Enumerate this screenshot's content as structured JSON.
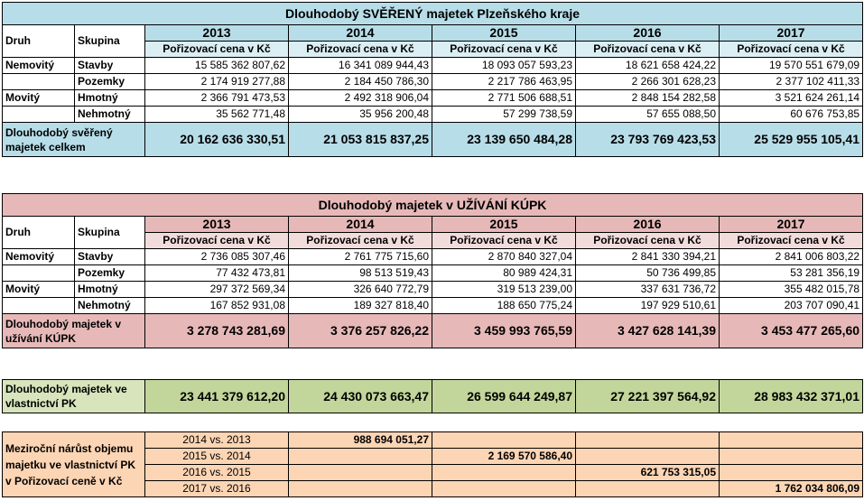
{
  "years": [
    "2013",
    "2014",
    "2015",
    "2016",
    "2017"
  ],
  "svereny": {
    "title": "Dlouhodobý SVĚŘENÝ majetek Plzeňského kraje",
    "druh_label": "Druh",
    "skupina_label": "Skupina",
    "sub_header": "Pořizovací cena v Kč",
    "rows": [
      {
        "druh": "Nemovitý",
        "skupina": "Stavby",
        "values": [
          "15 585 362 807,62",
          "16 341 089 944,43",
          "18 093 057 593,23",
          "18 621 658 424,22",
          "19 570 551 679,09"
        ]
      },
      {
        "druh": "",
        "skupina": "Pozemky",
        "values": [
          "2 174 919 277,88",
          "2 184 450 786,30",
          "2 217 786 463,95",
          "2 266 301 628,23",
          "2 377 102 411,33"
        ]
      },
      {
        "druh": "Movitý",
        "skupina": "Hmotný",
        "values": [
          "2 366 791 473,53",
          "2 492 318 906,04",
          "2 771 506 688,51",
          "2 848 154 282,58",
          "3 521 624 261,14"
        ]
      },
      {
        "druh": "",
        "skupina": "Nehmotný",
        "values": [
          "35 562 771,48",
          "35 956 200,48",
          "57 299 738,59",
          "57 655 088,50",
          "60 676 753,85"
        ]
      }
    ],
    "total_label": "Dlouhodobý svěřený majetek celkem",
    "totals": [
      "20 162 636 330,51",
      "21 053 815 837,25",
      "23 139 650 484,28",
      "23 793 769 423,53",
      "25 529 955 105,41"
    ]
  },
  "uzivani": {
    "title": "Dlouhodobý majetek v UŽÍVÁNÍ KÚPK",
    "druh_label": "Druh",
    "skupina_label": "Skupina",
    "sub_header": "Pořizovací cena v Kč",
    "rows": [
      {
        "druh": "Nemovitý",
        "skupina": "Stavby",
        "values": [
          "2 736 085 307,46",
          "2 761 775 715,60",
          "2 870 840 327,04",
          "2 841 330 394,21",
          "2 841 006 803,22"
        ]
      },
      {
        "druh": "",
        "skupina": "Pozemky",
        "values": [
          "77 432 473,81",
          "98 513 519,43",
          "80 989 424,31",
          "50 736 499,85",
          "53 281 356,19"
        ]
      },
      {
        "druh": "Movitý",
        "skupina": "Hmotný",
        "values": [
          "297 372 569,34",
          "326 640 772,79",
          "319 513 239,00",
          "337 631 736,72",
          "355 482 015,78"
        ]
      },
      {
        "druh": "",
        "skupina": "Nehmotný",
        "values": [
          "167 852 931,08",
          "189 327 818,40",
          "188 650 775,24",
          "197 929 510,61",
          "203 707 090,41"
        ]
      }
    ],
    "total_label": "Dlouhodobý majetek v užívání KÚPK",
    "totals": [
      "3 278 743 281,69",
      "3 376 257 826,22",
      "3 459 993 765,59",
      "3 427 628 141,39",
      "3 453 477 265,60"
    ]
  },
  "vlastnictvi": {
    "label": "Dlouhodobý majetek ve vlastnictví PK",
    "totals": [
      "23 441 379 612,20",
      "24 430 073 663,47",
      "26 599 644 249,87",
      "27 221 397 564,92",
      "28 983 432 371,01"
    ]
  },
  "narust": {
    "label": "Meziroční nárůst objemu majetku ve vlastnictví PK v Pořizovací ceně v Kč",
    "rows": [
      {
        "compare": "2014 vs. 2013",
        "value": "988 694 051,27"
      },
      {
        "compare": "2015 vs. 2014",
        "value": "2 169 570 586,40"
      },
      {
        "compare": "2016 vs. 2015",
        "value": "621 753 315,05"
      },
      {
        "compare": "2017 vs. 2016",
        "value": "1 762 034 806,09"
      }
    ]
  },
  "colors": {
    "blue_header": "#b7dde8",
    "blue_light": "#daeef3",
    "pink_header": "#e6b9b8",
    "pink_light": "#f2dcdb",
    "green": "#d7e4bc",
    "green_dark": "#c2d69b",
    "peach": "#fcd5b4"
  }
}
